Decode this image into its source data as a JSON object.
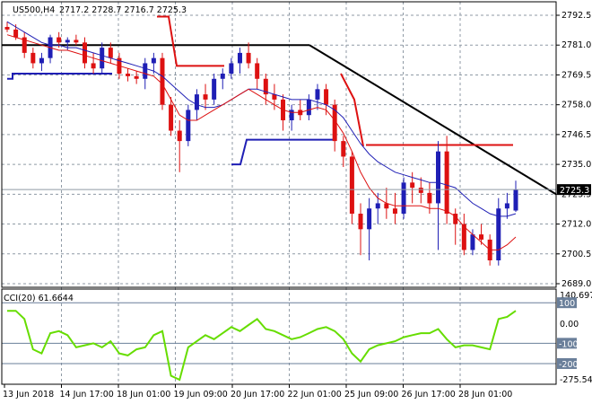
{
  "header": {
    "symbol": "US500,H4",
    "ohlc": "2717.2 2728.7 2716.7 2725.3"
  },
  "colors": {
    "bull": "#1f1fb5",
    "bear": "#dd1111",
    "grid": "#8f9aa5",
    "cci": "#66dd00",
    "trendline": "#000000",
    "level_line": "#dd1111",
    "support_line": "#1f1fb5"
  },
  "chart_data": [
    {
      "type": "candlestick",
      "price_label": "2725.3",
      "yticks": [
        "2792.5",
        "2781.0",
        "2769.5",
        "2758.0",
        "2746.5",
        "2735.0",
        "2723.5",
        "2712.0",
        "2700.5",
        "2689.0"
      ],
      "ylim": [
        2689.0,
        2795.5
      ],
      "xticks": [
        "13 Jun 2018",
        "14 Jun 17:00",
        "18 Jun 01:00",
        "19 Jun 09:00",
        "20 Jun 17:00",
        "22 Jun 01:00",
        "25 Jun 09:00",
        "26 Jun 17:00",
        "28 Jun 01:00"
      ],
      "candles": [
        [
          2788,
          2790,
          2786,
          2787
        ],
        [
          2787,
          2789,
          2783,
          2784
        ],
        [
          2784,
          2786,
          2776,
          2778
        ],
        [
          2778,
          2780,
          2772,
          2774
        ],
        [
          2774,
          2778,
          2771,
          2776
        ],
        [
          2776,
          2785,
          2774,
          2784
        ],
        [
          2784,
          2786,
          2780,
          2782
        ],
        [
          2782,
          2784,
          2779,
          2783
        ],
        [
          2783,
          2785,
          2781,
          2782
        ],
        [
          2782,
          2784,
          2772,
          2774
        ],
        [
          2774,
          2778,
          2770,
          2772
        ],
        [
          2772,
          2782,
          2770,
          2780
        ],
        [
          2780,
          2782,
          2774,
          2776
        ],
        [
          2776,
          2778,
          2768,
          2770
        ],
        [
          2770,
          2772,
          2767,
          2769
        ],
        [
          2769,
          2771,
          2766,
          2768
        ],
        [
          2768,
          2776,
          2764,
          2774
        ],
        [
          2774,
          2778,
          2770,
          2776
        ],
        [
          2776,
          2778,
          2756,
          2758
        ],
        [
          2758,
          2761,
          2746,
          2748
        ],
        [
          2748,
          2752,
          2732,
          2744
        ],
        [
          2744,
          2758,
          2742,
          2756
        ],
        [
          2756,
          2764,
          2752,
          2762
        ],
        [
          2762,
          2766,
          2756,
          2760
        ],
        [
          2760,
          2770,
          2758,
          2768
        ],
        [
          2768,
          2772,
          2764,
          2770
        ],
        [
          2770,
          2776,
          2768,
          2774
        ],
        [
          2774,
          2780,
          2770,
          2778
        ],
        [
          2778,
          2782,
          2772,
          2774
        ],
        [
          2774,
          2776,
          2764,
          2768
        ],
        [
          2768,
          2770,
          2758,
          2762
        ],
        [
          2762,
          2766,
          2756,
          2760
        ],
        [
          2760,
          2762,
          2748,
          2752
        ],
        [
          2752,
          2758,
          2748,
          2756
        ],
        [
          2756,
          2760,
          2752,
          2754
        ],
        [
          2754,
          2762,
          2752,
          2760
        ],
        [
          2760,
          2766,
          2756,
          2764
        ],
        [
          2764,
          2766,
          2754,
          2758
        ],
        [
          2758,
          2760,
          2740,
          2744
        ],
        [
          2744,
          2746,
          2734,
          2738
        ],
        [
          2738,
          2740,
          2712,
          2716
        ],
        [
          2716,
          2720,
          2700,
          2710
        ],
        [
          2710,
          2722,
          2698,
          2718
        ],
        [
          2718,
          2724,
          2712,
          2720
        ],
        [
          2720,
          2726,
          2714,
          2718
        ],
        [
          2718,
          2724,
          2712,
          2716
        ],
        [
          2716,
          2730,
          2714,
          2728
        ],
        [
          2728,
          2732,
          2720,
          2726
        ],
        [
          2726,
          2730,
          2720,
          2724
        ],
        [
          2724,
          2728,
          2716,
          2720
        ],
        [
          2720,
          2744,
          2702,
          2740
        ],
        [
          2740,
          2746,
          2712,
          2716
        ],
        [
          2716,
          2718,
          2704,
          2712
        ],
        [
          2712,
          2716,
          2700,
          2702
        ],
        [
          2702,
          2710,
          2700,
          2708
        ],
        [
          2708,
          2712,
          2704,
          2706
        ],
        [
          2706,
          2708,
          2696,
          2698
        ],
        [
          2698,
          2722,
          2696,
          2718
        ],
        [
          2718,
          2724,
          2714,
          2720
        ],
        [
          2717.2,
          2728.7,
          2716.7,
          2725.3
        ]
      ],
      "ma_blue": [
        2790,
        2788,
        2786,
        2784,
        2782,
        2781,
        2781,
        2780,
        2780,
        2779,
        2778,
        2777,
        2776,
        2775,
        2774,
        2773,
        2772,
        2771,
        2769,
        2766,
        2763,
        2760,
        2758,
        2757,
        2757,
        2758,
        2760,
        2762,
        2764,
        2764,
        2763,
        2762,
        2761,
        2760,
        2760,
        2760,
        2759,
        2758,
        2756,
        2753,
        2748,
        2743,
        2739,
        2736,
        2734,
        2732,
        2731,
        2730,
        2729,
        2728,
        2728,
        2727,
        2726,
        2723,
        2720,
        2718,
        2716,
        2715,
        2715,
        2716
      ],
      "ma_red": [
        2785,
        2784,
        2783,
        2782,
        2781,
        2780,
        2779,
        2779,
        2778,
        2777,
        2776,
        2775,
        2774,
        2773,
        2772,
        2771,
        2770,
        2769,
        2766,
        2760,
        2754,
        2752,
        2752,
        2754,
        2756,
        2758,
        2760,
        2762,
        2764,
        2762,
        2760,
        2758,
        2756,
        2755,
        2755,
        2756,
        2757,
        2756,
        2752,
        2747,
        2740,
        2732,
        2726,
        2722,
        2720,
        2719,
        2719,
        2719,
        2719,
        2718,
        2718,
        2717,
        2715,
        2711,
        2708,
        2705,
        2702,
        2702,
        2704,
        2707
      ],
      "trendline_label": "",
      "support_level": 2744.5,
      "resistance_level": 2742.5
    },
    {
      "type": "line",
      "title": "CCI(20) 61.6644",
      "yticks": [
        "140.6975",
        "100",
        "0.00",
        "-100",
        "-200",
        "-275.548"
      ],
      "ylim": [
        -275.548,
        140.6975
      ],
      "levels": [
        100,
        -100,
        -200
      ],
      "values": [
        60,
        60,
        20,
        -130,
        -150,
        -50,
        -40,
        -60,
        -120,
        -110,
        -100,
        -120,
        -90,
        -150,
        -160,
        -130,
        -120,
        -60,
        -40,
        -260,
        -280,
        -120,
        -90,
        -60,
        -80,
        -50,
        -20,
        -40,
        -10,
        20,
        -30,
        -40,
        -60,
        -80,
        -70,
        -50,
        -30,
        -20,
        -40,
        -80,
        -150,
        -190,
        -130,
        -110,
        -100,
        -90,
        -70,
        -60,
        -50,
        -50,
        -30,
        -80,
        -120,
        -110,
        -110,
        -120,
        -130,
        20,
        30,
        60
      ]
    }
  ]
}
